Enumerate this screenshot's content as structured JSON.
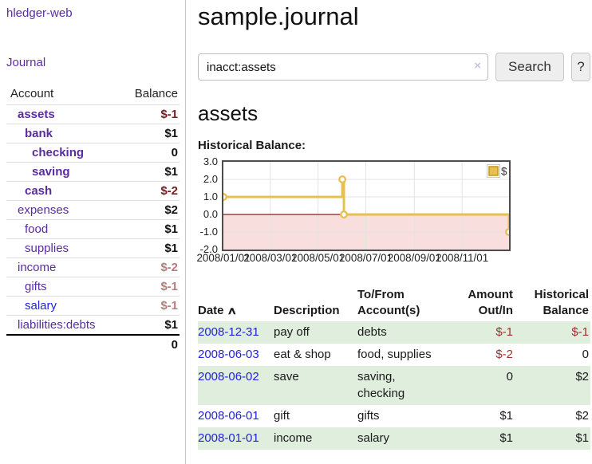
{
  "palette": {
    "purple": "#5a2ca0",
    "blue": "#2323d8",
    "maroon": "#7e1b1c",
    "rose": "#bd7a7a",
    "neg": "#9e3030",
    "green_row": "#dfeedd",
    "gold": "#e8c050",
    "gold_dark": "#c89b2a",
    "pink": "#f9dede",
    "grid": "#e3e3e3",
    "chart_border": "#4d4d4d",
    "zero_line": "#8b1a1a"
  },
  "sidebar": {
    "brand": "hledger-web",
    "nav_journal": "Journal",
    "accounts_table": {
      "header_account": "Account",
      "header_balance": "Balance",
      "rows": [
        {
          "name": "assets",
          "level": 1,
          "bold": true,
          "balance": "$-1"
        },
        {
          "name": "bank",
          "level": 2,
          "bold": true,
          "balance": "$1"
        },
        {
          "name": "checking",
          "level": 3,
          "bold": true,
          "balance": "0"
        },
        {
          "name": "saving",
          "level": 3,
          "bold": true,
          "balance": "$1"
        },
        {
          "name": "cash",
          "level": 2,
          "bold": true,
          "balance": "$-2"
        },
        {
          "name": "expenses",
          "level": 1,
          "bold": false,
          "balance": "$2"
        },
        {
          "name": "food",
          "level": 2,
          "bold": false,
          "balance": "$1"
        },
        {
          "name": "supplies",
          "level": 2,
          "bold": false,
          "balance": "$1"
        },
        {
          "name": "income",
          "level": 1,
          "bold": false,
          "balance": "$-2"
        },
        {
          "name": "gifts",
          "level": 2,
          "bold": false,
          "balance": "$-1"
        },
        {
          "name": "salary",
          "level": 2,
          "bold": false,
          "balance": "$-1",
          "link": "blue"
        },
        {
          "name": "liabilities:debts",
          "level": 1,
          "bold": false,
          "balance": "$1"
        }
      ],
      "total": "0"
    }
  },
  "header": {
    "title": "sample.journal"
  },
  "search": {
    "value": "inacct:assets",
    "clear_icon": "×",
    "button": "Search",
    "help": "?"
  },
  "account_page": {
    "title": "assets",
    "chart_label": "Historical Balance:"
  },
  "chart_data": {
    "type": "line",
    "step": true,
    "title": "Historical Balance:",
    "legend": {
      "position": "top-right"
    },
    "series": [
      {
        "name": "$",
        "points": [
          [
            "2008-01-01",
            1
          ],
          [
            "2008-06-01",
            2
          ],
          [
            "2008-06-03",
            0
          ],
          [
            "2008-12-31",
            -1
          ]
        ]
      }
    ],
    "x_range": [
      "2008-01-01",
      "2008-12-31"
    ],
    "x_ticks": [
      "2008/01/01",
      "2008/03/01",
      "2008/05/01",
      "2008/07/01",
      "2008/09/01",
      "2008/11/01"
    ],
    "y_ticks": [
      3.0,
      2.0,
      1.0,
      0.0,
      -1.0,
      -2.0
    ],
    "ylim": [
      -2,
      3
    ],
    "grid": true,
    "negative_region_shaded": true
  },
  "transactions": {
    "headers": [
      {
        "l1": "Date",
        "sort": "asc"
      },
      {
        "l1": "Description"
      },
      {
        "l1": "To/From",
        "l2": "Account(s)"
      },
      {
        "l1": "Amount",
        "l2": "Out/In",
        "align": "right"
      },
      {
        "l1": "Historical",
        "l2": "Balance",
        "align": "right"
      }
    ],
    "rows": [
      {
        "date": "2008-12-31",
        "description": "pay off",
        "accounts": "debts",
        "amount": "$-1",
        "balance": "$-1"
      },
      {
        "date": "2008-06-03",
        "description": "eat & shop",
        "accounts": "food, supplies",
        "amount": "$-2",
        "balance": "0"
      },
      {
        "date": "2008-06-02",
        "description": "save",
        "accounts": "saving, checking",
        "amount": "0",
        "balance": "$2"
      },
      {
        "date": "2008-06-01",
        "description": "gift",
        "accounts": "gifts",
        "amount": "$1",
        "balance": "$2"
      },
      {
        "date": "2008-01-01",
        "description": "income",
        "accounts": "salary",
        "amount": "$1",
        "balance": "$1"
      }
    ]
  }
}
